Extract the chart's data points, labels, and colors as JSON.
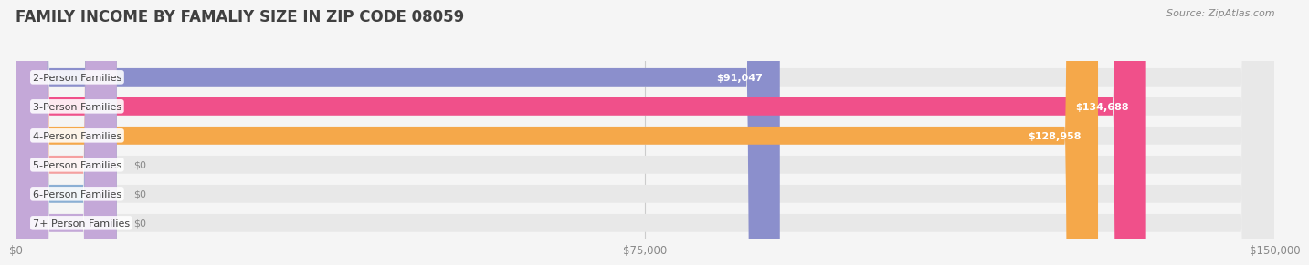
{
  "title": "FAMILY INCOME BY FAMALIY SIZE IN ZIP CODE 08059",
  "source": "Source: ZipAtlas.com",
  "categories": [
    "2-Person Families",
    "3-Person Families",
    "4-Person Families",
    "5-Person Families",
    "6-Person Families",
    "7+ Person Families"
  ],
  "values": [
    91047,
    134688,
    128958,
    0,
    0,
    0
  ],
  "bar_colors": [
    "#8b8fcc",
    "#f0508a",
    "#f5a84a",
    "#f5a0a0",
    "#8bafd4",
    "#c4a8d8"
  ],
  "value_labels": [
    "$91,047",
    "$134,688",
    "$128,958",
    "$0",
    "$0",
    "$0"
  ],
  "xlim": [
    0,
    150000
  ],
  "xticks": [
    0,
    75000,
    150000
  ],
  "xtick_labels": [
    "$0",
    "$75,000",
    "$150,000"
  ],
  "background_color": "#f5f5f5",
  "bar_bg_color": "#e8e8e8",
  "title_color": "#404040",
  "title_fontsize": 12,
  "label_fontsize": 8.0,
  "value_fontsize": 8.0,
  "source_fontsize": 8,
  "source_color": "#888888"
}
